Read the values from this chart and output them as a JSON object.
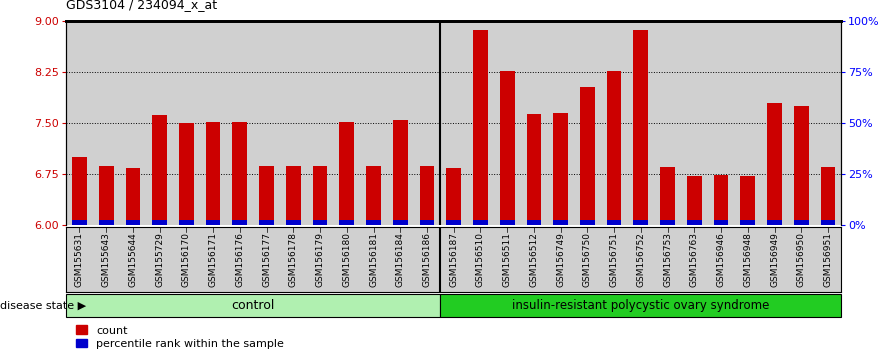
{
  "title": "GDS3104 / 234094_x_at",
  "samples": [
    "GSM155631",
    "GSM155643",
    "GSM155644",
    "GSM155729",
    "GSM156170",
    "GSM156171",
    "GSM156176",
    "GSM156177",
    "GSM156178",
    "GSM156179",
    "GSM156180",
    "GSM156181",
    "GSM156184",
    "GSM156186",
    "GSM156187",
    "GSM156510",
    "GSM156511",
    "GSM156512",
    "GSM156749",
    "GSM156750",
    "GSM156751",
    "GSM156752",
    "GSM156753",
    "GSM156763",
    "GSM156946",
    "GSM156948",
    "GSM156949",
    "GSM156950",
    "GSM156951"
  ],
  "bar_values": [
    7.0,
    6.87,
    6.84,
    7.62,
    7.5,
    7.52,
    7.52,
    6.87,
    6.87,
    6.87,
    7.52,
    6.87,
    7.55,
    6.87,
    6.84,
    8.87,
    8.26,
    7.63,
    7.65,
    8.03,
    8.27,
    8.87,
    6.85,
    6.72,
    6.73,
    6.72,
    7.8,
    7.75,
    6.85
  ],
  "percentile_has_blue": [
    true,
    true,
    true,
    true,
    true,
    true,
    true,
    true,
    true,
    true,
    true,
    true,
    true,
    true,
    true,
    false,
    true,
    false,
    true,
    true,
    true,
    true,
    true,
    true,
    true,
    true,
    true,
    true,
    false
  ],
  "control_count": 14,
  "disease_count": 15,
  "ylim_left": [
    6,
    9
  ],
  "ylim_right": [
    0,
    100
  ],
  "yticks_left": [
    6,
    6.75,
    7.5,
    8.25,
    9
  ],
  "yticks_right": [
    0,
    25,
    50,
    75,
    100
  ],
  "ytick_labels_right": [
    "0%",
    "25%",
    "50%",
    "75%",
    "100%"
  ],
  "bar_color": "#cc0000",
  "percentile_color": "#0000cc",
  "control_color": "#b0f0b0",
  "disease_color": "#22cc22",
  "bg_color": "#d0d0d0",
  "label_control": "control",
  "label_disease": "insulin-resistant polycystic ovary syndrome",
  "disease_state_label": "disease state",
  "legend_count": "count",
  "legend_percentile": "percentile rank within the sample",
  "bar_width": 0.55,
  "base_value": 6.0
}
